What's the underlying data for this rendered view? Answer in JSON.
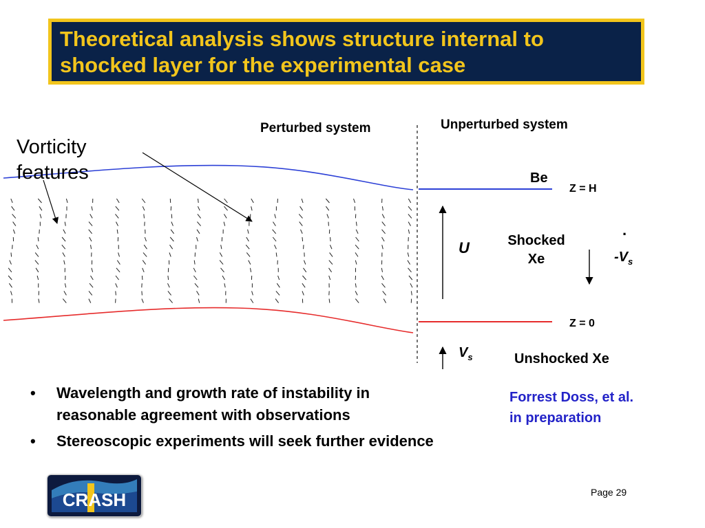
{
  "slide": {
    "title": "Theoretical analysis shows structure internal to shocked layer for the experimental case",
    "page": "Page 29"
  },
  "colors": {
    "title_bg": "#0a2248",
    "title_border": "#f2c51c",
    "title_text": "#f2c51c",
    "interface_top": "#2b3fd6",
    "interface_bottom": "#e62b2b",
    "citation": "#2323c8"
  },
  "diagram": {
    "perturbed_label": "Perturbed system",
    "unperturbed_label": "Unperturbed system",
    "vorticity_label_line1": "Vorticity",
    "vorticity_label_line2": "features",
    "be_label": "Be",
    "z_h_label": "Z = H",
    "z_0_label": "Z = 0",
    "u_label": "U",
    "shocked_line1": "Shocked",
    "shocked_line2": "Xe",
    "vs_dot_label": "·",
    "vs_neg_label": "-V",
    "vs_neg_sub": "s",
    "vs_label": "V",
    "vs_sub": "s",
    "unshocked_label": "Unshocked Xe"
  },
  "bullets": [
    {
      "line1": "Wavelength and growth rate of instability in",
      "line2": "reasonable agreement with observations"
    },
    {
      "line1": "Stereoscopic experiments will seek further evidence",
      "line2": ""
    }
  ],
  "citation": {
    "line1": "Forrest Doss, et al.",
    "line2": "in preparation"
  },
  "logo": {
    "text": "CRASH"
  }
}
